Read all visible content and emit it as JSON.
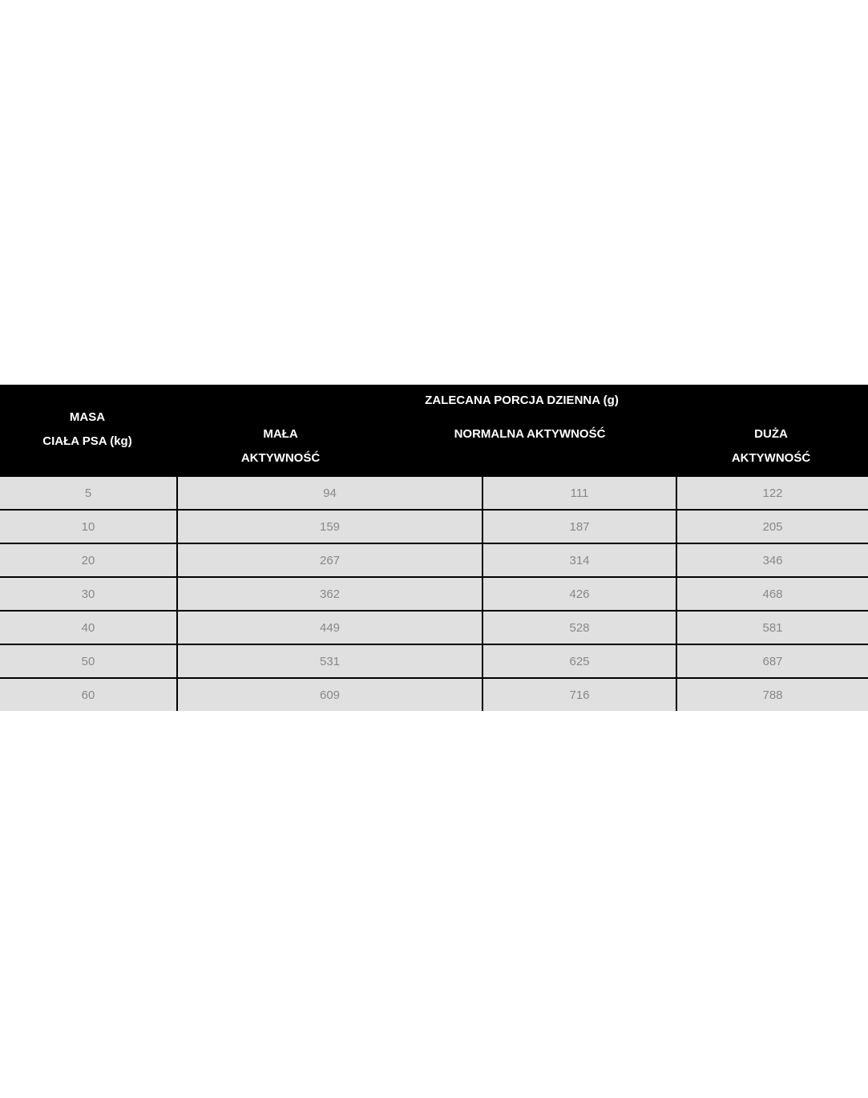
{
  "table": {
    "group_header": "ZALECANA PORCJA DZIENNA (g)",
    "columns": [
      {
        "line1": "MASA",
        "line2": "CIAŁA PSA (kg)"
      },
      {
        "line1": "MAŁA",
        "line2": "AKTYWNOŚĆ"
      },
      {
        "line1": "NORMALNA AKTYWNOŚĆ",
        "line2": ""
      },
      {
        "line1": "DUŻA",
        "line2": "AKTYWNOŚĆ"
      }
    ],
    "rows": [
      [
        "5",
        "94",
        "111",
        "122"
      ],
      [
        "10",
        "159",
        "187",
        "205"
      ],
      [
        "20",
        "267",
        "314",
        "346"
      ],
      [
        "30",
        "362",
        "426",
        "468"
      ],
      [
        "40",
        "449",
        "528",
        "581"
      ],
      [
        "50",
        "531",
        "625",
        "687"
      ],
      [
        "60",
        "609",
        "716",
        "788"
      ]
    ]
  },
  "colors": {
    "header_bg": "#000000",
    "body_bg": "#e0e0e0",
    "cell_text": "#888888"
  }
}
